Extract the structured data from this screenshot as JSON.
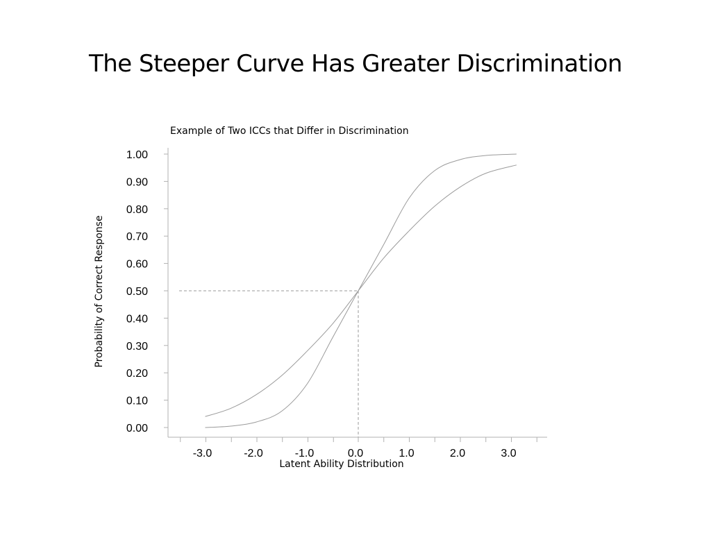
{
  "slide": {
    "title": "The Steeper Curve Has Greater Discrimination"
  },
  "chart_data": {
    "type": "line",
    "title": "Example of Two ICCs that Differ in Discrimination",
    "xlabel": "Latent Ability Distribution",
    "ylabel": "Probability of Correct Response",
    "xlim": [
      -3.4,
      3.5
    ],
    "ylim": [
      0,
      1
    ],
    "x_ticks": [
      "-3.0",
      "-2.0",
      "-1.0",
      "0.0",
      "1.0",
      "2.0",
      "3.0"
    ],
    "y_ticks": [
      "0.00",
      "0.10",
      "0.20",
      "0.30",
      "0.40",
      "0.50",
      "0.60",
      "0.70",
      "0.80",
      "0.90",
      "1.00"
    ],
    "grid": false,
    "reference_lines": {
      "x": 0.0,
      "y": 0.5,
      "style": "dashed"
    },
    "series": [
      {
        "x": [
          -3.0,
          -2.5,
          -2.0,
          -1.5,
          -1.0,
          -0.5,
          0.0,
          0.5,
          1.0,
          1.5,
          2.0,
          2.5,
          3.1
        ],
        "values": [
          0.0,
          0.005,
          0.02,
          0.06,
          0.16,
          0.33,
          0.5,
          0.67,
          0.84,
          0.94,
          0.98,
          0.995,
          1.0
        ],
        "color": "#9a9a9a"
      },
      {
        "x": [
          -3.0,
          -2.5,
          -2.0,
          -1.5,
          -1.0,
          -0.5,
          0.0,
          0.5,
          1.0,
          1.5,
          2.0,
          2.5,
          3.1
        ],
        "values": [
          0.04,
          0.07,
          0.12,
          0.19,
          0.28,
          0.38,
          0.5,
          0.62,
          0.72,
          0.81,
          0.88,
          0.93,
          0.96
        ],
        "color": "#9a9a9a"
      }
    ]
  }
}
